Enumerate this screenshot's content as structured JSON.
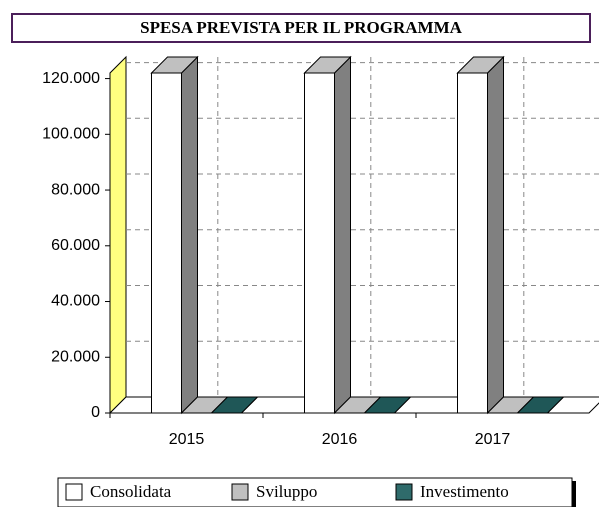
{
  "chart_data": {
    "type": "bar3d",
    "title": "SPESA PREVISTA PER IL PROGRAMMA",
    "categories": [
      "2015",
      "2016",
      "2017"
    ],
    "series": [
      {
        "name": "Consolidata",
        "color": "#ffffff",
        "values": [
          122000,
          122000,
          122000
        ]
      },
      {
        "name": "Sviluppo",
        "color": "#c0c0c0",
        "values": [
          0,
          0,
          0
        ]
      },
      {
        "name": "Investimento",
        "color": "#2f6b6b",
        "values": [
          0,
          0,
          0
        ]
      }
    ],
    "ylim": [
      0,
      122000
    ],
    "yticks": [
      0,
      {
        "value": 20000,
        "label": "20.000"
      },
      {
        "value": 40000,
        "label": "40.000"
      },
      {
        "value": 60000,
        "label": "60.000"
      },
      {
        "value": 80000,
        "label": "80.000"
      },
      {
        "value": 100000,
        "label": "100.000"
      },
      {
        "value": 120000,
        "label": "120.000"
      }
    ],
    "grid": true,
    "legend": "bottom"
  }
}
